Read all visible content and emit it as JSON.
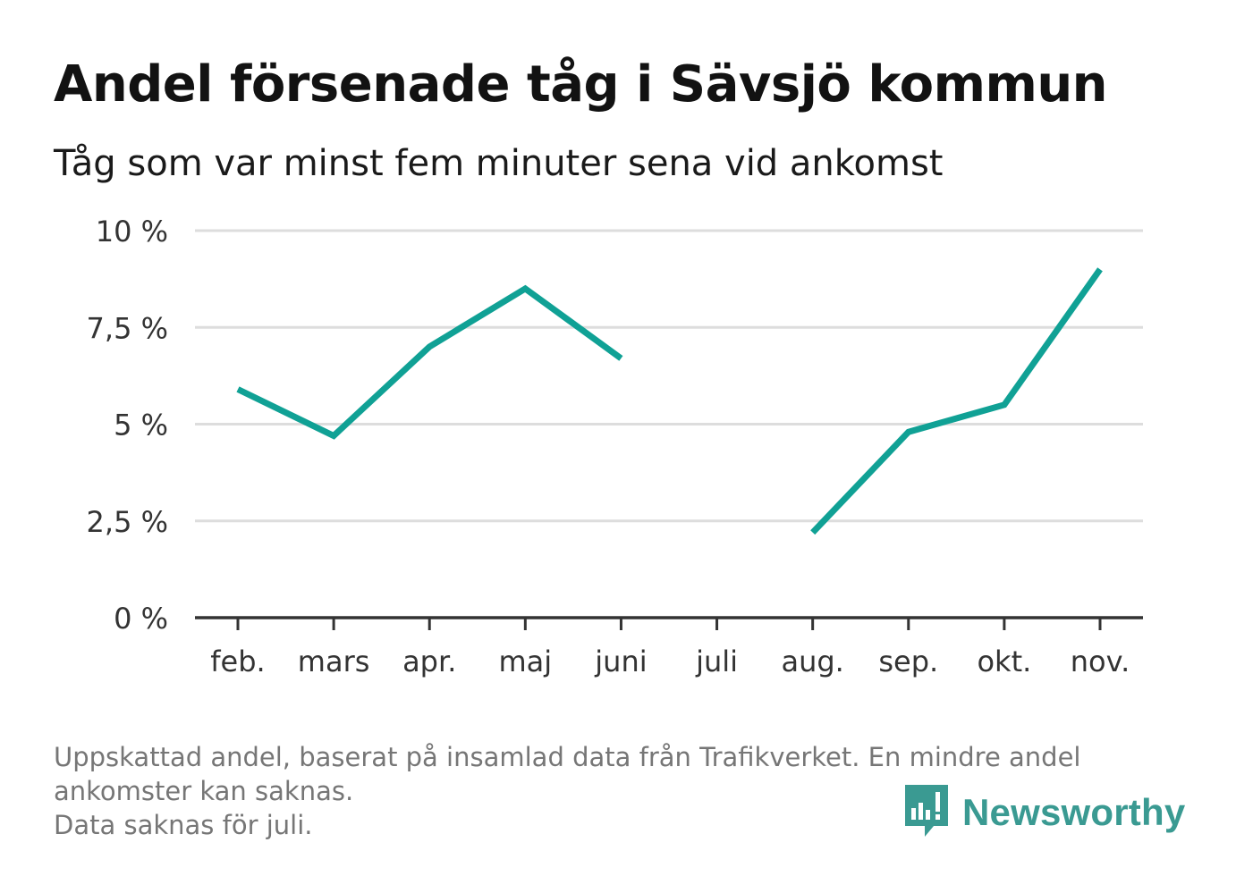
{
  "title": "Andel försenade tåg i Sävsjö kommun",
  "subtitle": "Tåg som var minst fem minuter sena vid ankomst",
  "footnote": {
    "line1": "Uppskattad andel, baserat på insamlad data från Trafikverket. En mindre andel",
    "line2": "ankomster kan saknas.",
    "line3": "Data saknas för juli."
  },
  "brand": {
    "name": "Newsworthy",
    "logo_icon": "newsworthy-logo-icon",
    "color": "#3a9a92"
  },
  "chart_data": {
    "type": "line",
    "categories": [
      "feb.",
      "mars",
      "apr.",
      "maj",
      "juni",
      "juli",
      "aug.",
      "sep.",
      "okt.",
      "nov."
    ],
    "series": [
      {
        "values": [
          5.9,
          4.7,
          7.0,
          8.5,
          6.7,
          null,
          2.2,
          4.8,
          5.5,
          9.0
        ],
        "color": "#10a195"
      }
    ],
    "ylim": [
      0,
      10
    ],
    "yticks": [
      0,
      2.5,
      5,
      7.5,
      10
    ],
    "ytick_labels": [
      "0 %",
      "2,5 %",
      "5 %",
      "7,5 %",
      "10 %"
    ],
    "xlabel": "",
    "ylabel": "",
    "grid": true,
    "gap_note": "Data saknas för juli."
  }
}
